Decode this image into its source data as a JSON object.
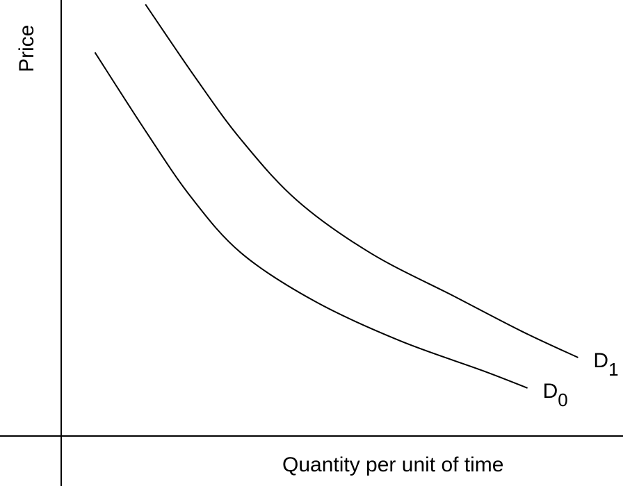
{
  "chart_data": {
    "type": "line",
    "xlabel": "Quantity per unit of time",
    "ylabel": "Price",
    "xlim": [
      0,
      10
    ],
    "ylim": [
      0,
      10
    ],
    "ticks": false,
    "grid": false,
    "colors": {
      "line": "#000000",
      "axis": "#000000",
      "background": "#ffffff"
    },
    "series": [
      {
        "name": "D0",
        "label_main": "D",
        "label_sub": "0",
        "points": [
          [
            0.6,
            8.8
          ],
          [
            1.5,
            7.0
          ],
          [
            2.3,
            5.5
          ],
          [
            3.2,
            4.2
          ],
          [
            4.5,
            3.1
          ],
          [
            6.0,
            2.2
          ],
          [
            7.5,
            1.5
          ],
          [
            8.3,
            1.1
          ]
        ]
      },
      {
        "name": "D1",
        "label_main": "D",
        "label_sub": "1",
        "points": [
          [
            1.5,
            9.9
          ],
          [
            2.4,
            8.2
          ],
          [
            3.2,
            6.8
          ],
          [
            4.2,
            5.4
          ],
          [
            5.5,
            4.2
          ],
          [
            7.0,
            3.2
          ],
          [
            8.2,
            2.4
          ],
          [
            9.2,
            1.8
          ]
        ]
      }
    ]
  }
}
